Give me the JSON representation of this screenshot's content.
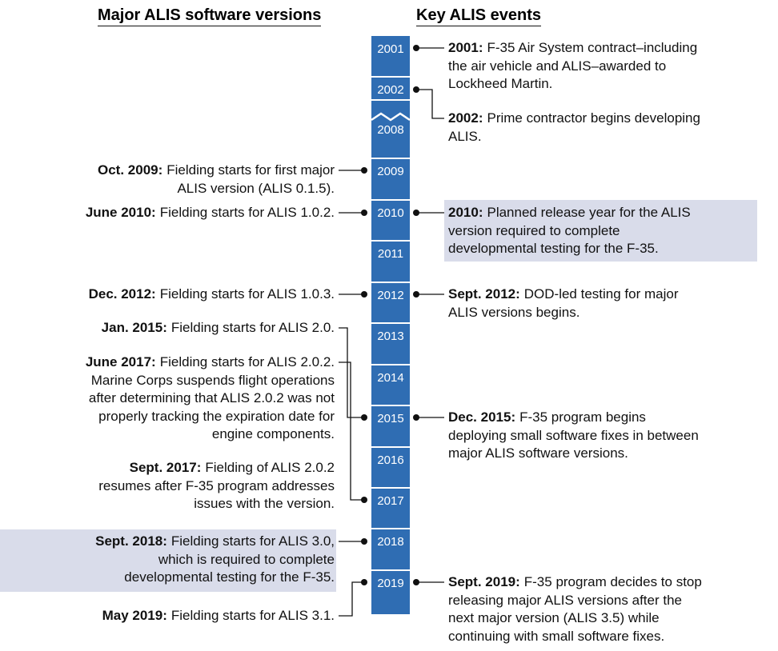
{
  "headers": {
    "left": "Major ALIS software versions",
    "right": "Key ALIS events"
  },
  "years": [
    "2001",
    "2002",
    "2008",
    "2009",
    "2010",
    "2011",
    "2012",
    "2013",
    "2014",
    "2015",
    "2016",
    "2017",
    "2018",
    "2019"
  ],
  "software_versions": [
    {
      "bold": "Oct. 2009:",
      "lines": [
        "Fielding starts for first major",
        "ALIS version (ALIS 0.1.5)."
      ]
    },
    {
      "bold": "June 2010:",
      "lines": [
        "Fielding starts for ALIS 1.0.2."
      ]
    },
    {
      "bold": "Dec. 2012:",
      "lines": [
        "Fielding starts for ALIS 1.0.3."
      ]
    },
    {
      "bold": "Jan. 2015:",
      "lines": [
        "Fielding starts for ALIS 2.0."
      ]
    },
    {
      "bold": "June 2017:",
      "lines": [
        "Fielding starts for ALIS 2.0.2.",
        "Marine Corps suspends flight operations",
        "after determining that ALIS 2.0.2 was not",
        "properly tracking the expiration date for",
        "engine components."
      ]
    },
    {
      "bold": "Sept. 2017:",
      "lines": [
        "Fielding of ALIS 2.0.2",
        "resumes after F-35 program addresses",
        "issues with the version."
      ]
    },
    {
      "bold": "Sept. 2018:",
      "lines": [
        "Fielding starts for ALIS 3.0,",
        "which is required to complete",
        "developmental testing for the F-35."
      ]
    },
    {
      "bold": "May 2019:",
      "lines": [
        "Fielding starts for ALIS 3.1."
      ]
    }
  ],
  "events": [
    {
      "bold": "2001:",
      "lines": [
        "F-35 Air System contract–including",
        "the air vehicle and ALIS–awarded to",
        "Lockheed Martin."
      ]
    },
    {
      "bold": "2002:",
      "lines": [
        "Prime contractor begins developing",
        "ALIS."
      ]
    },
    {
      "bold": "2010:",
      "lines": [
        "Planned release year for the ALIS",
        "version required to complete",
        "developmental testing for the F-35."
      ]
    },
    {
      "bold": "Sept. 2012:",
      "lines": [
        "DOD-led testing for major",
        "ALIS versions begins."
      ]
    },
    {
      "bold": "Dec. 2015:",
      "lines": [
        "F-35 program begins",
        "deploying small software fixes in between",
        "major ALIS software versions."
      ]
    },
    {
      "bold": "Sept. 2019:",
      "lines": [
        "F-35 program decides to stop",
        "releasing major ALIS versions after the",
        "next major version (ALIS 3.5) while",
        "continuing with small software fixes."
      ]
    }
  ]
}
